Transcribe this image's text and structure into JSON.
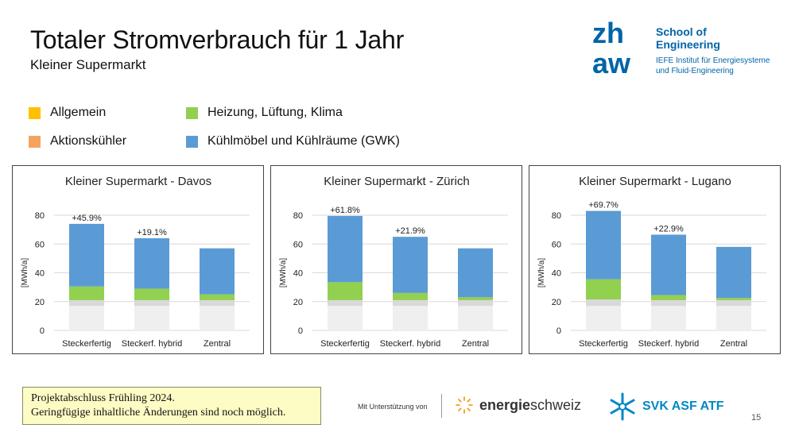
{
  "header": {
    "title": "Totaler Stromverbrauch für 1 Jahr",
    "subtitle": "Kleiner Supermarkt"
  },
  "logo": {
    "school": "School of",
    "school2": "Engineering",
    "institute": "IEFE Institut für Energiesysteme",
    "institute2": "und Fluid-Engineering",
    "brand_color": "#0064a8"
  },
  "legend": [
    {
      "label": "Allgemein",
      "color": "#ffc000"
    },
    {
      "label": "Heizung, Lüftung, Klima",
      "color": "#92d050"
    },
    {
      "label": "Aktionskühler",
      "color": "#f4a460"
    },
    {
      "label": "Kühlmöbel und Kühlräume (GWK)",
      "color": "#5b9bd5"
    }
  ],
  "chart_data": [
    {
      "type": "bar",
      "stacked": true,
      "title": "Kleiner Supermarkt - Davos",
      "ylabel": "[MWh/a]",
      "ylim": [
        0,
        80
      ],
      "yticks": [
        0,
        20,
        40,
        60,
        80
      ],
      "grid": true,
      "categories": [
        "Steckerfertig",
        "Steckerf. hybrid",
        "Zentral"
      ],
      "series": [
        {
          "name": "base",
          "color": "#efefef",
          "values": [
            17,
            17,
            17
          ]
        },
        {
          "name": "base2",
          "color": "#d9d9d9",
          "values": [
            4,
            4,
            4
          ]
        },
        {
          "name": "Heizung, Lüftung, Klima",
          "color": "#92d050",
          "values": [
            9.5,
            8,
            4
          ]
        },
        {
          "name": "Kühlmöbel und Kühlräume (GWK)",
          "color": "#5b9bd5",
          "values": [
            43.5,
            35,
            32
          ]
        }
      ],
      "annotations": [
        "+45.9%",
        "+19.1%",
        ""
      ]
    },
    {
      "type": "bar",
      "stacked": true,
      "title": "Kleiner Supermarkt - Zürich",
      "ylabel": "[MWh/a]",
      "ylim": [
        0,
        80
      ],
      "yticks": [
        0,
        20,
        40,
        60,
        80
      ],
      "grid": true,
      "categories": [
        "Steckerfertig",
        "Steckerf. hybrid",
        "Zentral"
      ],
      "series": [
        {
          "name": "base",
          "color": "#efefef",
          "values": [
            17,
            17,
            17
          ]
        },
        {
          "name": "base2",
          "color": "#d9d9d9",
          "values": [
            4,
            4,
            4
          ]
        },
        {
          "name": "Heizung, Lüftung, Klima",
          "color": "#92d050",
          "values": [
            12.5,
            5,
            2
          ]
        },
        {
          "name": "Kühlmöbel und Kühlräume (GWK)",
          "color": "#5b9bd5",
          "values": [
            46,
            39,
            34
          ]
        }
      ],
      "annotations": [
        "+61.8%",
        "+21.9%",
        ""
      ]
    },
    {
      "type": "bar",
      "stacked": true,
      "title": "Kleiner Supermarkt - Lugano",
      "ylabel": "[MWh/a]",
      "ylim": [
        0,
        80
      ],
      "yticks": [
        0,
        20,
        40,
        60,
        80
      ],
      "grid": true,
      "categories": [
        "Steckerfertig",
        "Steckerf. hybrid",
        "Zentral"
      ],
      "series": [
        {
          "name": "base",
          "color": "#efefef",
          "values": [
            17,
            17,
            17
          ]
        },
        {
          "name": "base2",
          "color": "#d9d9d9",
          "values": [
            4.5,
            4,
            4
          ]
        },
        {
          "name": "Heizung, Lüftung, Klima",
          "color": "#92d050",
          "values": [
            14,
            3.5,
            1.5
          ]
        },
        {
          "name": "Kühlmöbel und Kühlräume (GWK)",
          "color": "#5b9bd5",
          "values": [
            47.5,
            42,
            35.5
          ]
        }
      ],
      "annotations": [
        "+69.7%",
        "+22.9%",
        ""
      ]
    }
  ],
  "note": {
    "line1": "Projektabschluss Frühling 2024.",
    "line2": "Geringfügige inhaltliche Änderungen sind noch möglich."
  },
  "footer": {
    "support": "Mit Unterstützung von",
    "energie_bold": "energie",
    "energie_rest": "schweiz",
    "svk": "SVK ASF ATF",
    "page": "15"
  }
}
